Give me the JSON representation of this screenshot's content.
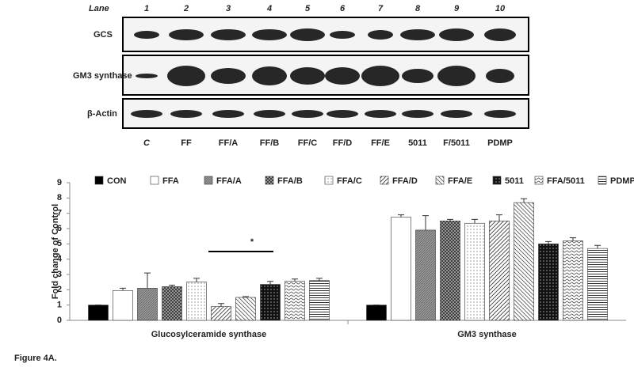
{
  "blot": {
    "lane_label": "Lane",
    "lanes": [
      1,
      2,
      3,
      4,
      5,
      6,
      7,
      8,
      9,
      10
    ],
    "rows": [
      "GCS",
      "GM3 synthase",
      "β-Actin"
    ],
    "conditions": [
      "C",
      "FF",
      "FF/A",
      "FF/B",
      "FF/C",
      "FF/D",
      "FF/E",
      "5011",
      "F/5011",
      "PDMP"
    ]
  },
  "chart_data": {
    "type": "bar",
    "y_label": "Fold change of Control",
    "annotation": "*",
    "categories": [
      "Glucosylceramide synthase",
      "GM3 synthase"
    ],
    "series": [
      {
        "name": "CON",
        "values": [
          1,
          1
        ],
        "errors": [
          0,
          0
        ]
      },
      {
        "name": "FFA",
        "values": [
          1.95,
          6.75
        ],
        "errors": [
          0.15,
          0.15
        ]
      },
      {
        "name": "FFA/A",
        "values": [
          2.1,
          5.9
        ],
        "errors": [
          1.0,
          0.95
        ]
      },
      {
        "name": "FFA/B",
        "values": [
          2.2,
          6.5
        ],
        "errors": [
          0.1,
          0.1
        ]
      },
      {
        "name": "FFA/C",
        "values": [
          2.5,
          6.35
        ],
        "errors": [
          0.25,
          0.25
        ]
      },
      {
        "name": "FFA/D",
        "values": [
          0.9,
          6.5
        ],
        "errors": [
          0.2,
          0.4
        ]
      },
      {
        "name": "FFA/E",
        "values": [
          1.5,
          7.7
        ],
        "errors": [
          0.05,
          0.25
        ]
      },
      {
        "name": "5011",
        "values": [
          2.35,
          5.0
        ],
        "errors": [
          0.2,
          0.15
        ]
      },
      {
        "name": "FFA/5011",
        "values": [
          2.55,
          5.2
        ],
        "errors": [
          0.15,
          0.2
        ]
      },
      {
        "name": "PDMP",
        "values": [
          2.6,
          4.7
        ],
        "errors": [
          0.15,
          0.2
        ]
      }
    ],
    "ylim": [
      0,
      9
    ],
    "yticks": [
      0,
      1,
      2,
      3,
      4,
      5,
      6,
      7,
      8,
      9
    ],
    "grid": false,
    "legend": "top"
  },
  "caption": "Figure 4A."
}
